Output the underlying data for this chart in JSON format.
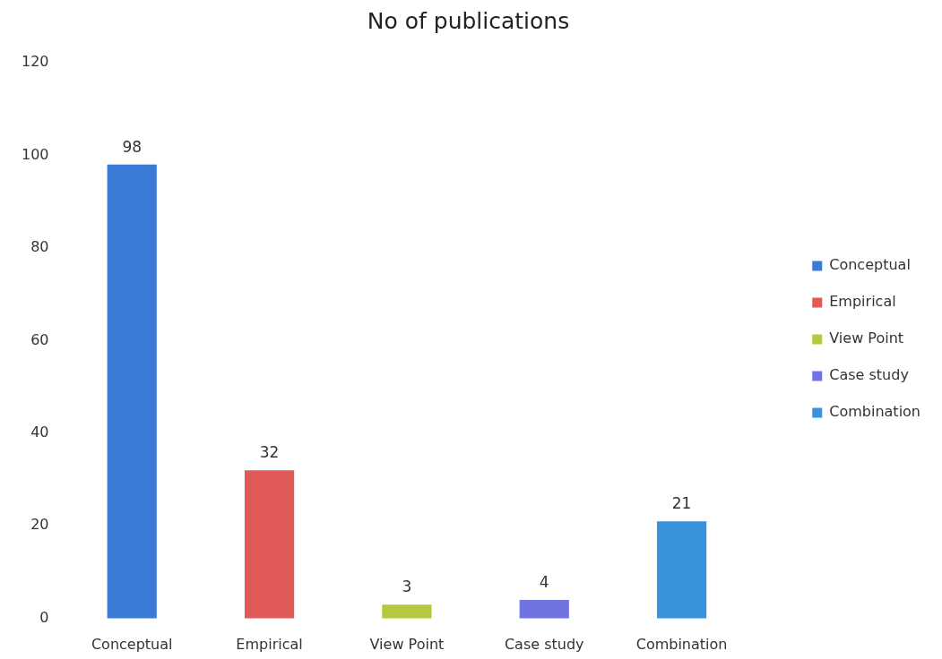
{
  "chart_data": {
    "type": "bar",
    "title": "No of publications",
    "categories": [
      "Conceptual",
      "Empirical",
      "View Point",
      "Case study",
      "Combination"
    ],
    "series": [
      {
        "name": "Conceptual",
        "color": "#3a7bd8",
        "values": [
          98,
          null,
          null,
          null,
          null
        ]
      },
      {
        "name": "Empirical",
        "color": "#e05a5a",
        "values": [
          null,
          32,
          null,
          null,
          null
        ]
      },
      {
        "name": "View Point",
        "color": "#b5c83e",
        "values": [
          null,
          null,
          3,
          null,
          null
        ]
      },
      {
        "name": "Case study",
        "color": "#7273e2",
        "values": [
          null,
          null,
          null,
          4,
          null
        ]
      },
      {
        "name": "Combination",
        "color": "#3a92da",
        "values": [
          null,
          null,
          null,
          null,
          21
        ]
      }
    ],
    "ylim": [
      0,
      120
    ],
    "yticks": [
      0,
      20,
      40,
      60,
      80,
      100,
      120
    ],
    "grid": false,
    "legend": "right",
    "data_labels": true
  }
}
